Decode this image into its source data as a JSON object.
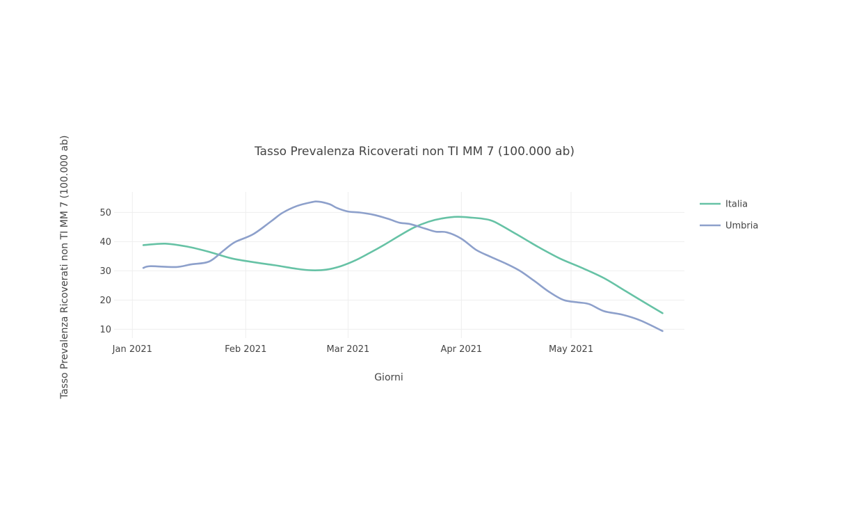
{
  "chart_data": {
    "type": "line",
    "title": "Tasso Prevalenza Ricoverati non TI MM 7 (100.000 ab)",
    "xlabel": "Giorni",
    "ylabel": "Tasso Prevalenza Ricoverati non TI MM 7 (100.000 ab)",
    "x_ticks": [
      {
        "date": "2021-01-01",
        "label": "Jan 2021"
      },
      {
        "date": "2021-02-01",
        "label": "Feb 2021"
      },
      {
        "date": "2021-03-01",
        "label": "Mar 2021"
      },
      {
        "date": "2021-04-01",
        "label": "Apr 2021"
      },
      {
        "date": "2021-05-01",
        "label": "May 2021"
      }
    ],
    "xlim": [
      "2020-12-27",
      "2021-06-01"
    ],
    "ylim": [
      7,
      57
    ],
    "y_ticks": [
      10,
      20,
      30,
      40,
      50
    ],
    "grid": true,
    "legend_position": "right",
    "series": [
      {
        "name": "Italia",
        "color": "#66c2a5",
        "points": [
          [
            "2021-01-04",
            38.8
          ],
          [
            "2021-01-10",
            39.3
          ],
          [
            "2021-01-16",
            38.3
          ],
          [
            "2021-01-22",
            36.5
          ],
          [
            "2021-01-28",
            34.3
          ],
          [
            "2021-02-03",
            33.0
          ],
          [
            "2021-02-09",
            31.9
          ],
          [
            "2021-02-15",
            30.7
          ],
          [
            "2021-02-19",
            30.2
          ],
          [
            "2021-02-23",
            30.4
          ],
          [
            "2021-02-27",
            31.6
          ],
          [
            "2021-03-03",
            33.6
          ],
          [
            "2021-03-07",
            36.2
          ],
          [
            "2021-03-11",
            39.0
          ],
          [
            "2021-03-15",
            42.0
          ],
          [
            "2021-03-19",
            44.8
          ],
          [
            "2021-03-23",
            46.8
          ],
          [
            "2021-03-27",
            48.0
          ],
          [
            "2021-03-31",
            48.5
          ],
          [
            "2021-04-04",
            48.2
          ],
          [
            "2021-04-07",
            47.8
          ],
          [
            "2021-04-10",
            46.8
          ],
          [
            "2021-04-16",
            42.6
          ],
          [
            "2021-04-22",
            38.2
          ],
          [
            "2021-04-28",
            34.2
          ],
          [
            "2021-05-04",
            31.0
          ],
          [
            "2021-05-10",
            27.5
          ],
          [
            "2021-05-16",
            23.0
          ],
          [
            "2021-05-22",
            18.5
          ],
          [
            "2021-05-26",
            15.5
          ]
        ]
      },
      {
        "name": "Umbria",
        "color": "#8da0cb",
        "points": [
          [
            "2021-01-04",
            31.0
          ],
          [
            "2021-01-06",
            31.6
          ],
          [
            "2021-01-13",
            31.3
          ],
          [
            "2021-01-17",
            32.2
          ],
          [
            "2021-01-22",
            33.2
          ],
          [
            "2021-01-26",
            37.0
          ],
          [
            "2021-01-29",
            39.8
          ],
          [
            "2021-02-03",
            42.5
          ],
          [
            "2021-02-08",
            47.0
          ],
          [
            "2021-02-11",
            49.8
          ],
          [
            "2021-02-15",
            52.2
          ],
          [
            "2021-02-19",
            53.5
          ],
          [
            "2021-02-21",
            53.7
          ],
          [
            "2021-02-24",
            52.8
          ],
          [
            "2021-02-26",
            51.5
          ],
          [
            "2021-03-01",
            50.3
          ],
          [
            "2021-03-04",
            50.0
          ],
          [
            "2021-03-08",
            49.2
          ],
          [
            "2021-03-12",
            47.8
          ],
          [
            "2021-03-15",
            46.5
          ],
          [
            "2021-03-18",
            46.0
          ],
          [
            "2021-03-22",
            44.5
          ],
          [
            "2021-03-25",
            43.4
          ],
          [
            "2021-03-28",
            43.2
          ],
          [
            "2021-04-01",
            41.0
          ],
          [
            "2021-04-05",
            37.2
          ],
          [
            "2021-04-09",
            34.8
          ],
          [
            "2021-04-13",
            32.6
          ],
          [
            "2021-04-17",
            30.0
          ],
          [
            "2021-04-21",
            26.5
          ],
          [
            "2021-04-25",
            22.8
          ],
          [
            "2021-04-29",
            20.0
          ],
          [
            "2021-05-03",
            19.2
          ],
          [
            "2021-05-06",
            18.6
          ],
          [
            "2021-05-10",
            16.2
          ],
          [
            "2021-05-15",
            15.0
          ],
          [
            "2021-05-20",
            13.0
          ],
          [
            "2021-05-26",
            9.4
          ]
        ]
      }
    ]
  }
}
